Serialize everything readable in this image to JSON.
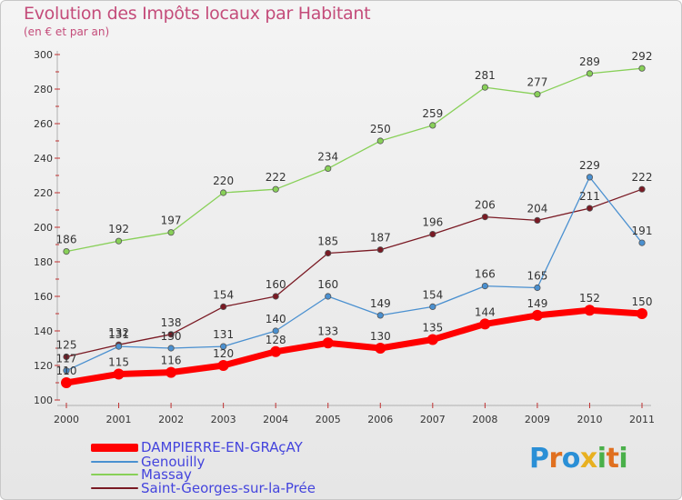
{
  "title": "Evolution des Impôts locaux par Habitant",
  "subtitle": "(en € et par an)",
  "logo": {
    "text": "Proxiti",
    "colors": [
      "#2a8fd6",
      "#e07020",
      "#2a8fd6",
      "#e8b020",
      "#4ab04a",
      "#e07020",
      "#4ab04a"
    ]
  },
  "chart_data": {
    "type": "line",
    "xlabel": "",
    "ylabel": "",
    "ylim": [
      100,
      300
    ],
    "yticks": [
      100,
      120,
      140,
      160,
      180,
      200,
      220,
      240,
      260,
      280,
      300
    ],
    "grid": false,
    "legend_position": "bottom-left",
    "x": [
      "2000",
      "2001",
      "2002",
      "2003",
      "2004",
      "2005",
      "2006",
      "2007",
      "2008",
      "2009",
      "2010",
      "2011"
    ],
    "series": [
      {
        "name": "DAMPIERRE-EN-GRAçAY",
        "color": "#ff0000",
        "values": [
          110,
          115,
          116,
          120,
          128,
          133,
          130,
          135,
          144,
          149,
          152,
          150
        ]
      },
      {
        "name": "Genouilly",
        "color": "#4a90d0",
        "values": [
          117,
          131,
          130,
          131,
          140,
          160,
          149,
          154,
          166,
          165,
          229,
          191
        ]
      },
      {
        "name": "Massay",
        "color": "#88d058",
        "values": [
          186,
          192,
          197,
          220,
          222,
          234,
          250,
          259,
          281,
          277,
          289,
          292
        ]
      },
      {
        "name": "Saint-Georges-sur-la-Prée",
        "color": "#7a1a24",
        "values": [
          125,
          132,
          138,
          154,
          160,
          185,
          187,
          196,
          206,
          204,
          211,
          222
        ]
      }
    ]
  }
}
